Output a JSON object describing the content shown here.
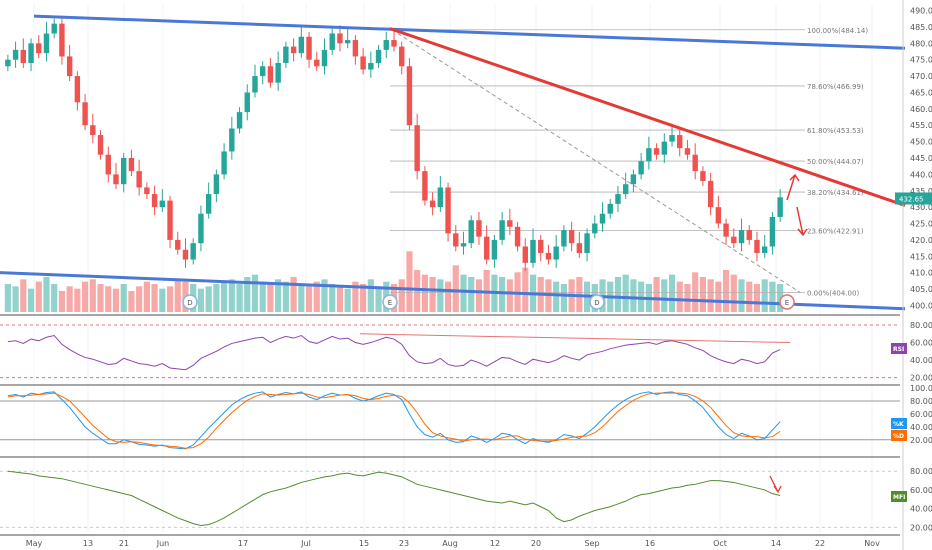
{
  "chart_data": [
    {
      "type": "candlestick",
      "panel": "price",
      "ylim": [
        398,
        492
      ],
      "y_ticks": [
        "400.00",
        "405.00",
        "410.00",
        "415.00",
        "420.00",
        "425.00",
        "430.00",
        "435.00",
        "440.00",
        "445.00",
        "450.00",
        "455.00",
        "460.00",
        "465.00",
        "470.00",
        "475.00",
        "480.00",
        "485.00",
        "490.00"
      ],
      "x_ticks": [
        "May",
        "13",
        "21",
        "Jun",
        "17",
        "Jul",
        "15",
        "23",
        "Aug",
        "12",
        "20",
        "Sep",
        "16",
        "Oct",
        "14",
        "22",
        "Nov"
      ],
      "last_price": "432.65",
      "fibonacci": [
        {
          "label": "100.00%(484.14)",
          "value": 484.14
        },
        {
          "label": "78.60%(466.99)",
          "value": 466.99
        },
        {
          "label": "61.80%(453.53)",
          "value": 453.53
        },
        {
          "label": "50.00%(444.07)",
          "value": 444.07
        },
        {
          "label": "38.20%(434.61)",
          "value": 434.61
        },
        {
          "label": "23.60%(422.91)",
          "value": 422.91
        },
        {
          "label": "0.00%(404.00)",
          "value": 404.0
        }
      ],
      "events": [
        {
          "label": "D",
          "x_index": 26
        },
        {
          "label": "E",
          "x_index": 53
        },
        {
          "label": "D",
          "x_index": 82
        },
        {
          "label": "E",
          "x_index": 108
        }
      ],
      "closes": [
        475,
        478,
        474,
        480,
        477,
        483,
        486,
        476,
        470,
        462,
        455,
        452,
        446,
        440,
        437,
        445,
        441,
        436,
        434,
        430,
        432,
        420,
        417,
        414,
        419,
        428,
        434,
        440,
        447,
        454,
        459,
        465,
        470,
        473,
        468,
        474,
        479,
        477,
        482,
        475,
        473,
        478,
        483,
        480,
        481,
        476,
        472,
        474,
        478,
        481,
        479,
        473,
        455,
        441,
        432,
        430,
        436,
        422,
        418,
        419,
        426,
        421,
        414,
        420,
        426,
        424,
        418,
        413,
        420,
        416,
        414,
        418,
        423,
        419,
        416,
        422,
        425,
        428,
        431,
        434,
        437,
        440,
        444,
        448,
        446,
        450,
        452,
        448,
        446,
        441,
        438,
        430,
        425,
        421,
        419,
        423,
        420,
        416,
        418,
        427,
        433
      ],
      "annotations": "Downtrend resistance line (red) from July high; long-term blue channel lines top and bottom; dashed diagonal from July high to 0% level; red up/down arrows near right edge"
    },
    {
      "type": "volume",
      "panel": "price",
      "values": [
        12,
        11,
        14,
        10,
        13,
        15,
        12,
        9,
        11,
        10,
        13,
        14,
        12,
        11,
        10,
        12,
        9,
        11,
        13,
        12,
        10,
        11,
        14,
        13,
        12,
        10,
        11,
        12,
        13,
        14,
        12,
        15,
        16,
        13,
        12,
        14,
        13,
        15,
        12,
        11,
        13,
        14,
        12,
        11,
        10,
        13,
        12,
        14,
        11,
        13,
        12,
        14,
        26,
        18,
        16,
        15,
        14,
        13,
        20,
        16,
        15,
        14,
        18,
        16,
        15,
        14,
        17,
        19,
        16,
        15,
        14,
        13,
        12,
        14,
        15,
        13,
        12,
        14,
        13,
        15,
        16,
        14,
        13,
        12,
        15,
        14,
        16,
        13,
        12,
        17,
        15,
        14,
        13,
        18,
        16,
        14,
        13,
        12,
        14,
        13,
        12
      ]
    },
    {
      "type": "line",
      "panel": "RSI",
      "ylim": [
        15,
        88
      ],
      "y_ticks": [
        "20.00",
        "40.00",
        "60.00",
        "80.00"
      ],
      "label": "RSI",
      "values": [
        61,
        62,
        59,
        64,
        62,
        66,
        68,
        58,
        52,
        47,
        43,
        41,
        38,
        35,
        36,
        42,
        39,
        36,
        35,
        33,
        36,
        31,
        30,
        29,
        34,
        42,
        46,
        50,
        55,
        59,
        61,
        63,
        65,
        66,
        60,
        64,
        67,
        65,
        68,
        61,
        59,
        63,
        67,
        64,
        65,
        60,
        58,
        60,
        63,
        66,
        64,
        58,
        45,
        38,
        36,
        37,
        42,
        35,
        33,
        34,
        40,
        37,
        33,
        38,
        43,
        42,
        38,
        35,
        41,
        39,
        37,
        40,
        45,
        42,
        40,
        46,
        48,
        50,
        53,
        55,
        57,
        58,
        59,
        60,
        58,
        61,
        62,
        60,
        58,
        54,
        51,
        45,
        41,
        38,
        36,
        41,
        39,
        36,
        38,
        48,
        52
      ]
    },
    {
      "type": "line",
      "panel": "Stochastic",
      "ylim": [
        -5,
        100
      ],
      "y_ticks": [
        "20.00",
        "40.00",
        "60.00",
        "80.00",
        "100.00"
      ],
      "series": [
        {
          "name": "%K",
          "color": "#2196f3",
          "values": [
            88,
            90,
            86,
            92,
            90,
            93,
            94,
            82,
            70,
            55,
            40,
            30,
            22,
            14,
            14,
            20,
            17,
            13,
            12,
            10,
            12,
            8,
            7,
            6,
            12,
            25,
            38,
            50,
            62,
            74,
            82,
            88,
            92,
            94,
            86,
            90,
            93,
            91,
            94,
            86,
            82,
            88,
            92,
            89,
            90,
            84,
            80,
            83,
            88,
            92,
            90,
            82,
            60,
            40,
            28,
            24,
            30,
            20,
            16,
            17,
            26,
            22,
            16,
            22,
            30,
            28,
            20,
            14,
            22,
            18,
            16,
            20,
            28,
            26,
            22,
            30,
            40,
            52,
            64,
            74,
            82,
            88,
            92,
            94,
            90,
            93,
            94,
            90,
            88,
            80,
            70,
            55,
            40,
            28,
            22,
            30,
            26,
            20,
            22,
            35,
            48
          ]
        },
        {
          "name": "%D",
          "color": "#ff6d00",
          "values": [
            86,
            88,
            88,
            89,
            90,
            91,
            92,
            87,
            80,
            68,
            55,
            42,
            32,
            22,
            17,
            16,
            17,
            16,
            14,
            12,
            11,
            10,
            9,
            7,
            8,
            14,
            24,
            38,
            50,
            62,
            72,
            81,
            87,
            91,
            90,
            89,
            90,
            91,
            92,
            90,
            86,
            85,
            87,
            89,
            90,
            88,
            84,
            82,
            84,
            87,
            89,
            87,
            77,
            62,
            44,
            31,
            26,
            23,
            21,
            18,
            20,
            21,
            21,
            20,
            23,
            26,
            26,
            21,
            19,
            18,
            18,
            19,
            21,
            24,
            25,
            26,
            31,
            40,
            52,
            64,
            73,
            81,
            87,
            91,
            92,
            92,
            92,
            92,
            91,
            87,
            80,
            70,
            56,
            42,
            31,
            26,
            25,
            25,
            23,
            25,
            33
          ]
        }
      ]
    },
    {
      "type": "line",
      "panel": "MFI",
      "ylim": [
        15,
        92
      ],
      "y_ticks": [
        "20.00",
        "40.00",
        "60.00",
        "80.00"
      ],
      "label": "MFI",
      "values": [
        80,
        79,
        78,
        77,
        75,
        74,
        73,
        72,
        70,
        68,
        66,
        64,
        62,
        60,
        58,
        56,
        54,
        50,
        46,
        42,
        38,
        34,
        30,
        27,
        24,
        22,
        23,
        26,
        30,
        35,
        40,
        45,
        50,
        55,
        58,
        60,
        62,
        65,
        68,
        70,
        72,
        74,
        75,
        77,
        78,
        76,
        75,
        77,
        79,
        78,
        76,
        74,
        70,
        66,
        64,
        62,
        60,
        58,
        56,
        54,
        52,
        50,
        48,
        47,
        46,
        48,
        46,
        44,
        46,
        42,
        38,
        30,
        26,
        28,
        32,
        35,
        38,
        40,
        42,
        45,
        48,
        52,
        55,
        56,
        58,
        60,
        62,
        63,
        65,
        66,
        68,
        70,
        70,
        69,
        68,
        66,
        64,
        62,
        60,
        56,
        54
      ]
    }
  ]
}
